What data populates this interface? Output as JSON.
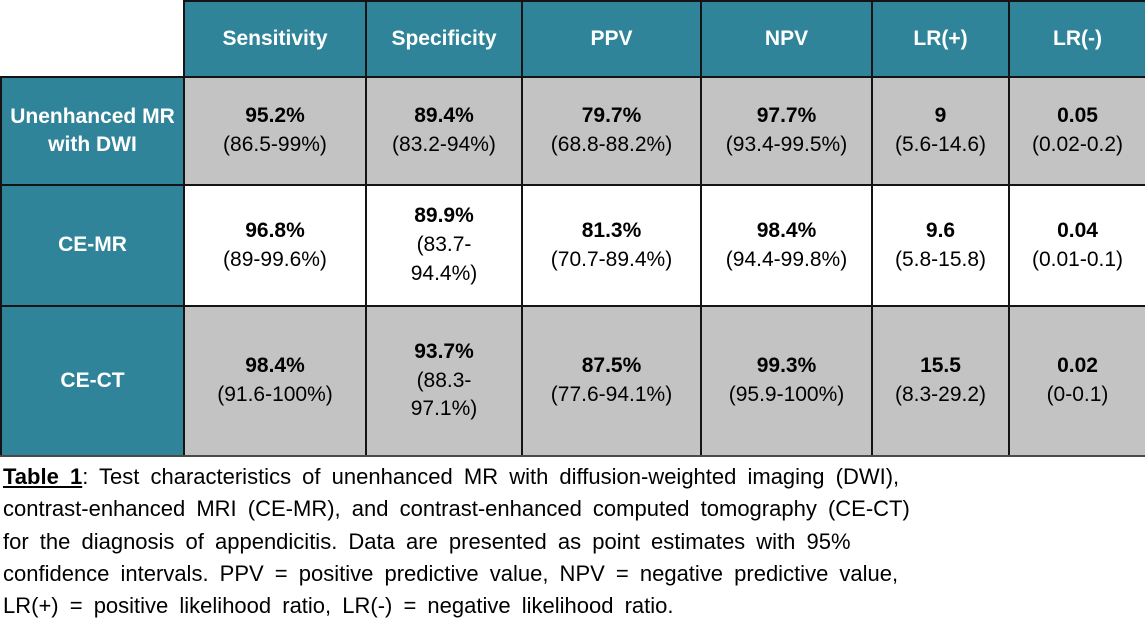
{
  "colors": {
    "header_teal": "#2F8499",
    "row_gray": "#C3C3C3",
    "row_white": "#FFFFFF",
    "border_black": "#141414",
    "header_text": "#FFFFFF",
    "body_text": "#000000"
  },
  "table": {
    "columns": [
      "",
      "Sensitivity",
      "Specificity",
      "PPV",
      "NPV",
      "LR(+)",
      "LR(-)"
    ],
    "rows": [
      {
        "label": "Unenhanced MR with DWI",
        "cells": [
          {
            "value": "95.2%",
            "ci": "(86.5-99%)"
          },
          {
            "value": "89.4%",
            "ci": "(83.2-94%)"
          },
          {
            "value": "79.7%",
            "ci": "(68.8-88.2%)"
          },
          {
            "value": "97.7%",
            "ci": "(93.4-99.5%)"
          },
          {
            "value": "9",
            "ci": "(5.6-14.6)"
          },
          {
            "value": "0.05",
            "ci": "(0.02-0.2)"
          }
        ]
      },
      {
        "label": "CE-MR",
        "cells": [
          {
            "value": "96.8%",
            "ci": "(89-99.6%)"
          },
          {
            "value": "89.9%",
            "ci": "(83.7-\n94.4%)"
          },
          {
            "value": "81.3%",
            "ci": "(70.7-89.4%)"
          },
          {
            "value": "98.4%",
            "ci": "(94.4-99.8%)"
          },
          {
            "value": "9.6",
            "ci": "(5.8-15.8)"
          },
          {
            "value": "0.04",
            "ci": "(0.01-0.1)"
          }
        ]
      },
      {
        "label": "CE-CT",
        "cells": [
          {
            "value": "98.4%",
            "ci": "(91.6-100%)"
          },
          {
            "value": "93.7%",
            "ci": "(88.3-\n97.1%)"
          },
          {
            "value": "87.5%",
            "ci": "(77.6-94.1%)"
          },
          {
            "value": "99.3%",
            "ci": "(95.9-100%)"
          },
          {
            "value": "15.5",
            "ci": "(8.3-29.2)"
          },
          {
            "value": "0.02",
            "ci": "(0-0.1)"
          }
        ]
      }
    ]
  },
  "caption": {
    "label": "Table 1",
    "line1_rest": ": Test characteristics of unenhanced MR with diffusion-weighted imaging (DWI),",
    "line2": "contrast-enhanced MRI (CE-MR), and contrast-enhanced computed tomography (CE-CT)",
    "line3": "for the diagnosis of appendicitis. Data are presented as point estimates with 95%",
    "line4": "confidence intervals. PPV = positive predictive value, NPV = negative predictive value,",
    "line5": "LR(+) = positive likelihood ratio, LR(-) = negative likelihood ratio."
  },
  "chart_data": {
    "type": "table",
    "title": "Table 1",
    "columns": [
      "",
      "Sensitivity",
      "Specificity",
      "PPV",
      "NPV",
      "LR(+)",
      "LR(-)"
    ],
    "rows": [
      [
        "Unenhanced MR with DWI",
        "95.2% (86.5-99%)",
        "89.4% (83.2-94%)",
        "79.7% (68.8-88.2%)",
        "97.7% (93.4-99.5%)",
        "9 (5.6-14.6)",
        "0.05 (0.02-0.2)"
      ],
      [
        "CE-MR",
        "96.8% (89-99.6%)",
        "89.9% (83.7-94.4%)",
        "81.3% (70.7-89.4%)",
        "98.4% (94.4-99.8%)",
        "9.6 (5.8-15.8)",
        "0.04 (0.01-0.1)"
      ],
      [
        "CE-CT",
        "98.4% (91.6-100%)",
        "93.7% (88.3-97.1%)",
        "87.5% (77.6-94.1%)",
        "99.3% (95.9-100%)",
        "15.5 (8.3-29.2)",
        "0.02 (0-0.1)"
      ]
    ],
    "caption": "Table 1: Test characteristics of unenhanced MR with diffusion-weighted imaging (DWI), contrast-enhanced MRI (CE-MR), and contrast-enhanced computed tomography (CE-CT) for the diagnosis of appendicitis. Data are presented as point estimates with 95% confidence intervals. PPV = positive predictive value, NPV = negative predictive value, LR(+) = positive likelihood ratio, LR(-) = negative likelihood ratio."
  }
}
